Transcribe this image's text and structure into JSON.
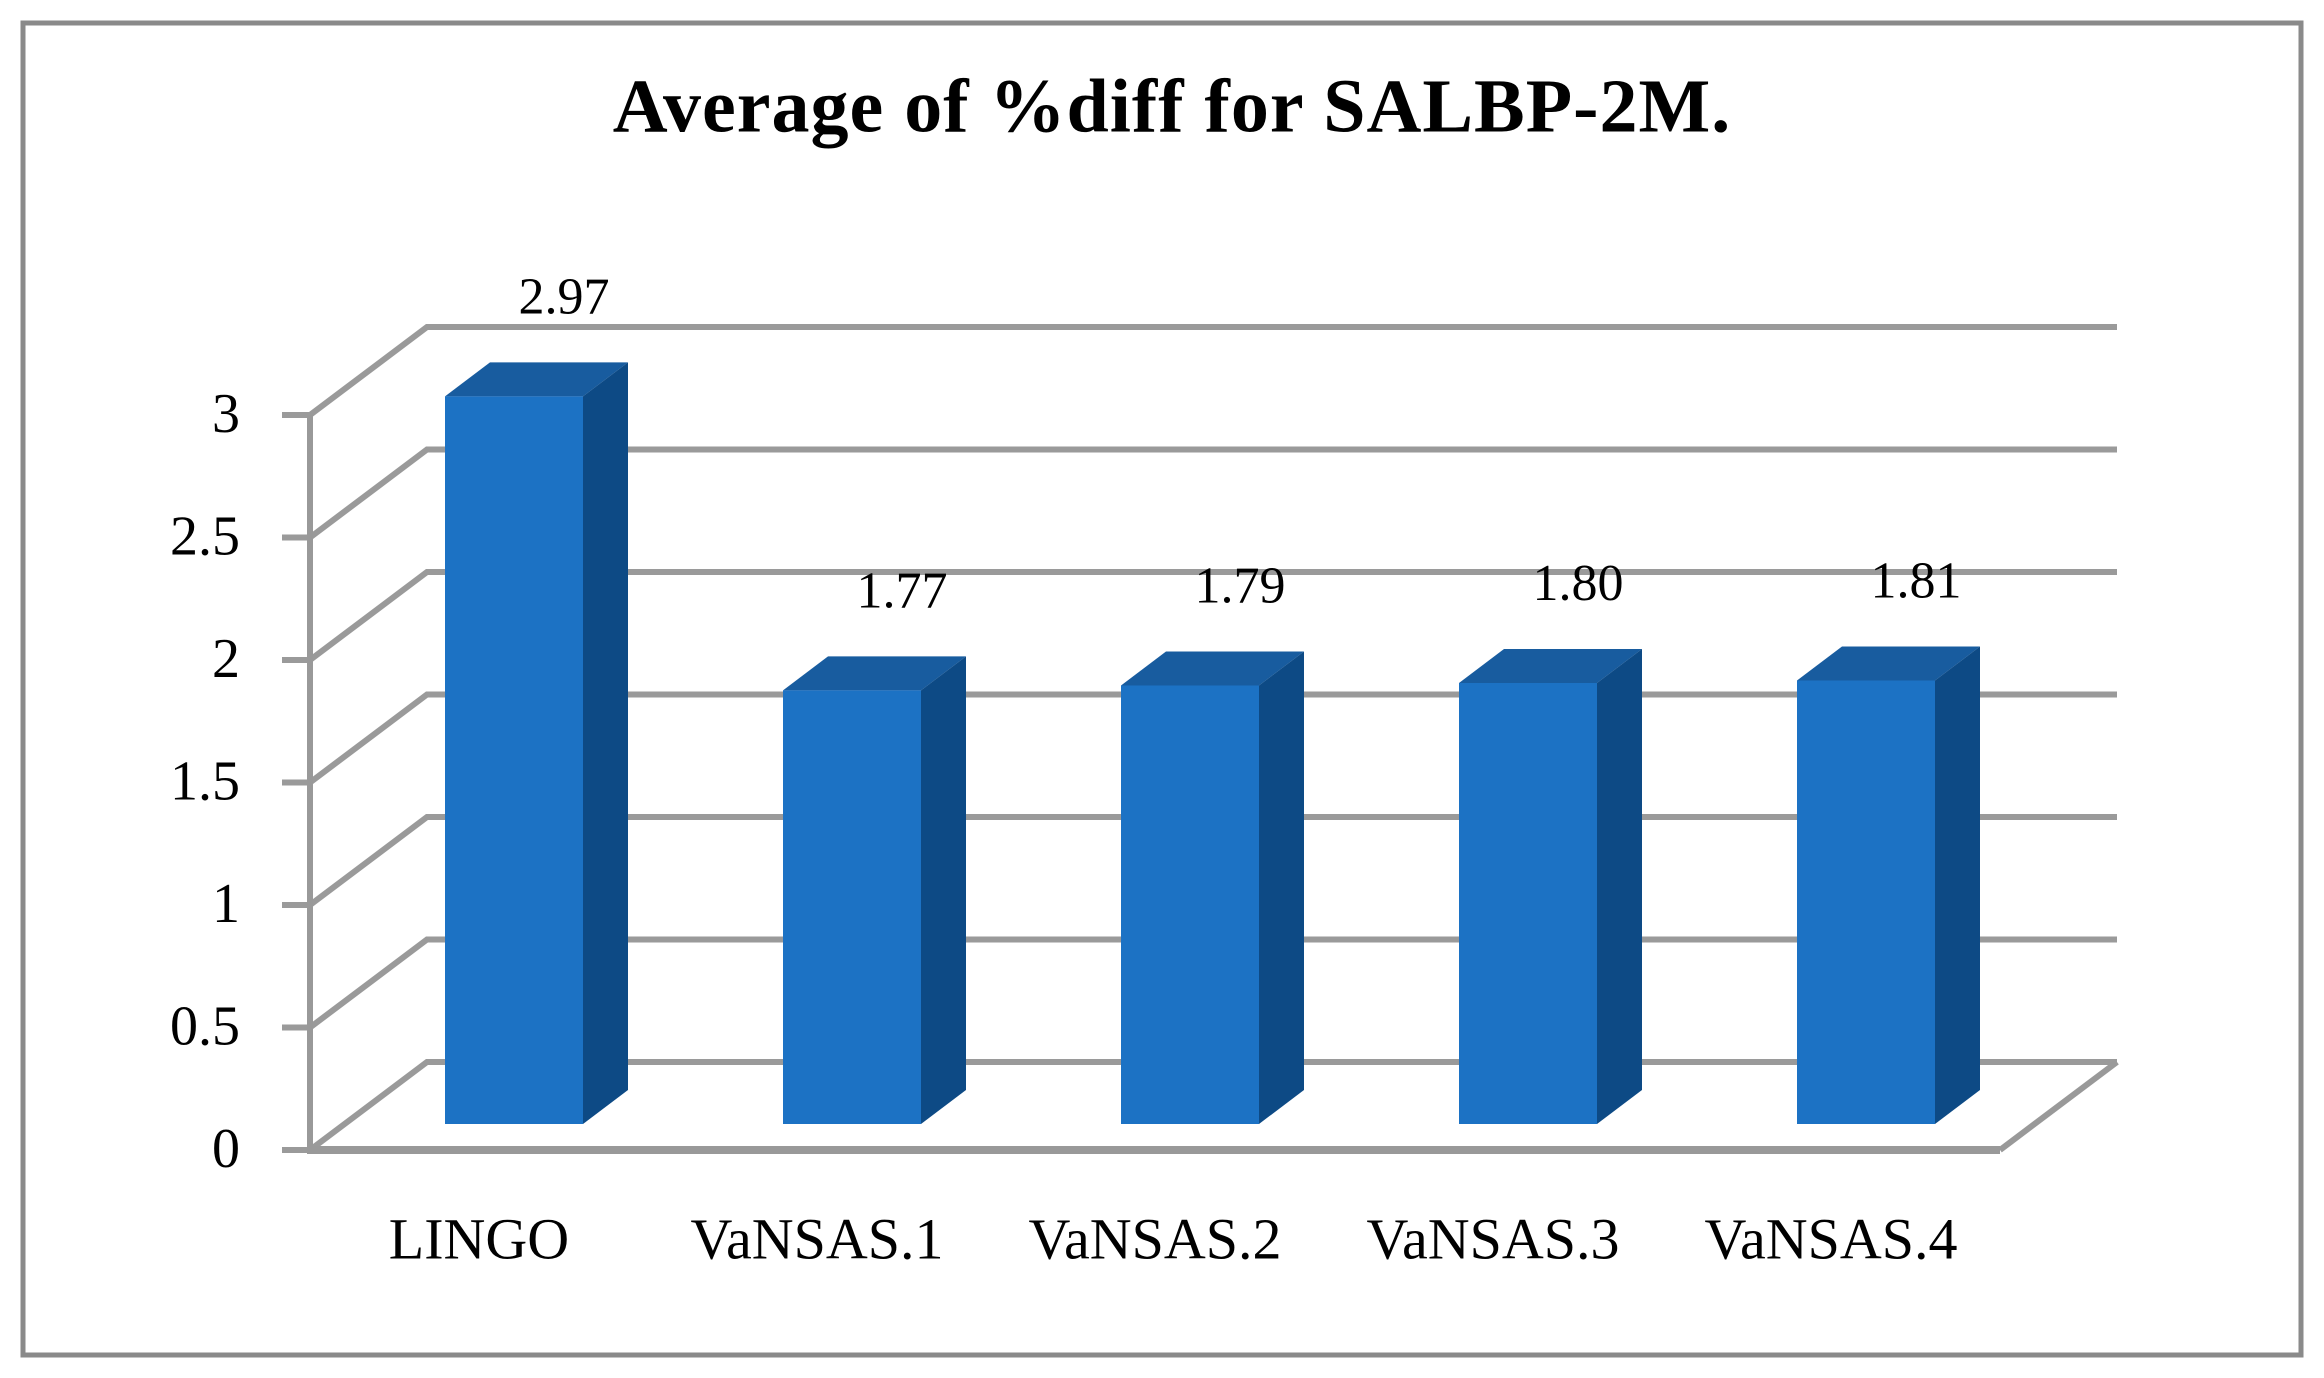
{
  "figure": {
    "title": "Average of %diff for SALBP-2M."
  },
  "chart_data": {
    "type": "bar",
    "style": "3d-column",
    "title": "Average of %diff for SALBP-2M.",
    "categories": [
      "LINGO",
      "VaNSAS.1",
      "VaNSAS.2",
      "VaNSAS.3",
      "VaNSAS.4"
    ],
    "values": [
      2.97,
      1.77,
      1.79,
      1.8,
      1.81
    ],
    "data_labels": [
      "2.97",
      "1.77",
      "1.79",
      "1.80",
      "1.81"
    ],
    "xlabel": "",
    "ylabel": "",
    "ylim": [
      0,
      3
    ],
    "ytick_step": 0.5,
    "ytick_labels": [
      "0",
      "0.5",
      "1",
      "1.5",
      "2",
      "2.5",
      "3"
    ],
    "grid": true,
    "legend": false,
    "colors": {
      "bar_front": "#1C72C4",
      "bar_side": "#0D4A85",
      "bar_top": "#185C9F",
      "gridline": "#9A9A9A",
      "axis": "#999999",
      "border": "#8A8A8A",
      "background": "#FFFFFF",
      "text": "#000000"
    }
  }
}
